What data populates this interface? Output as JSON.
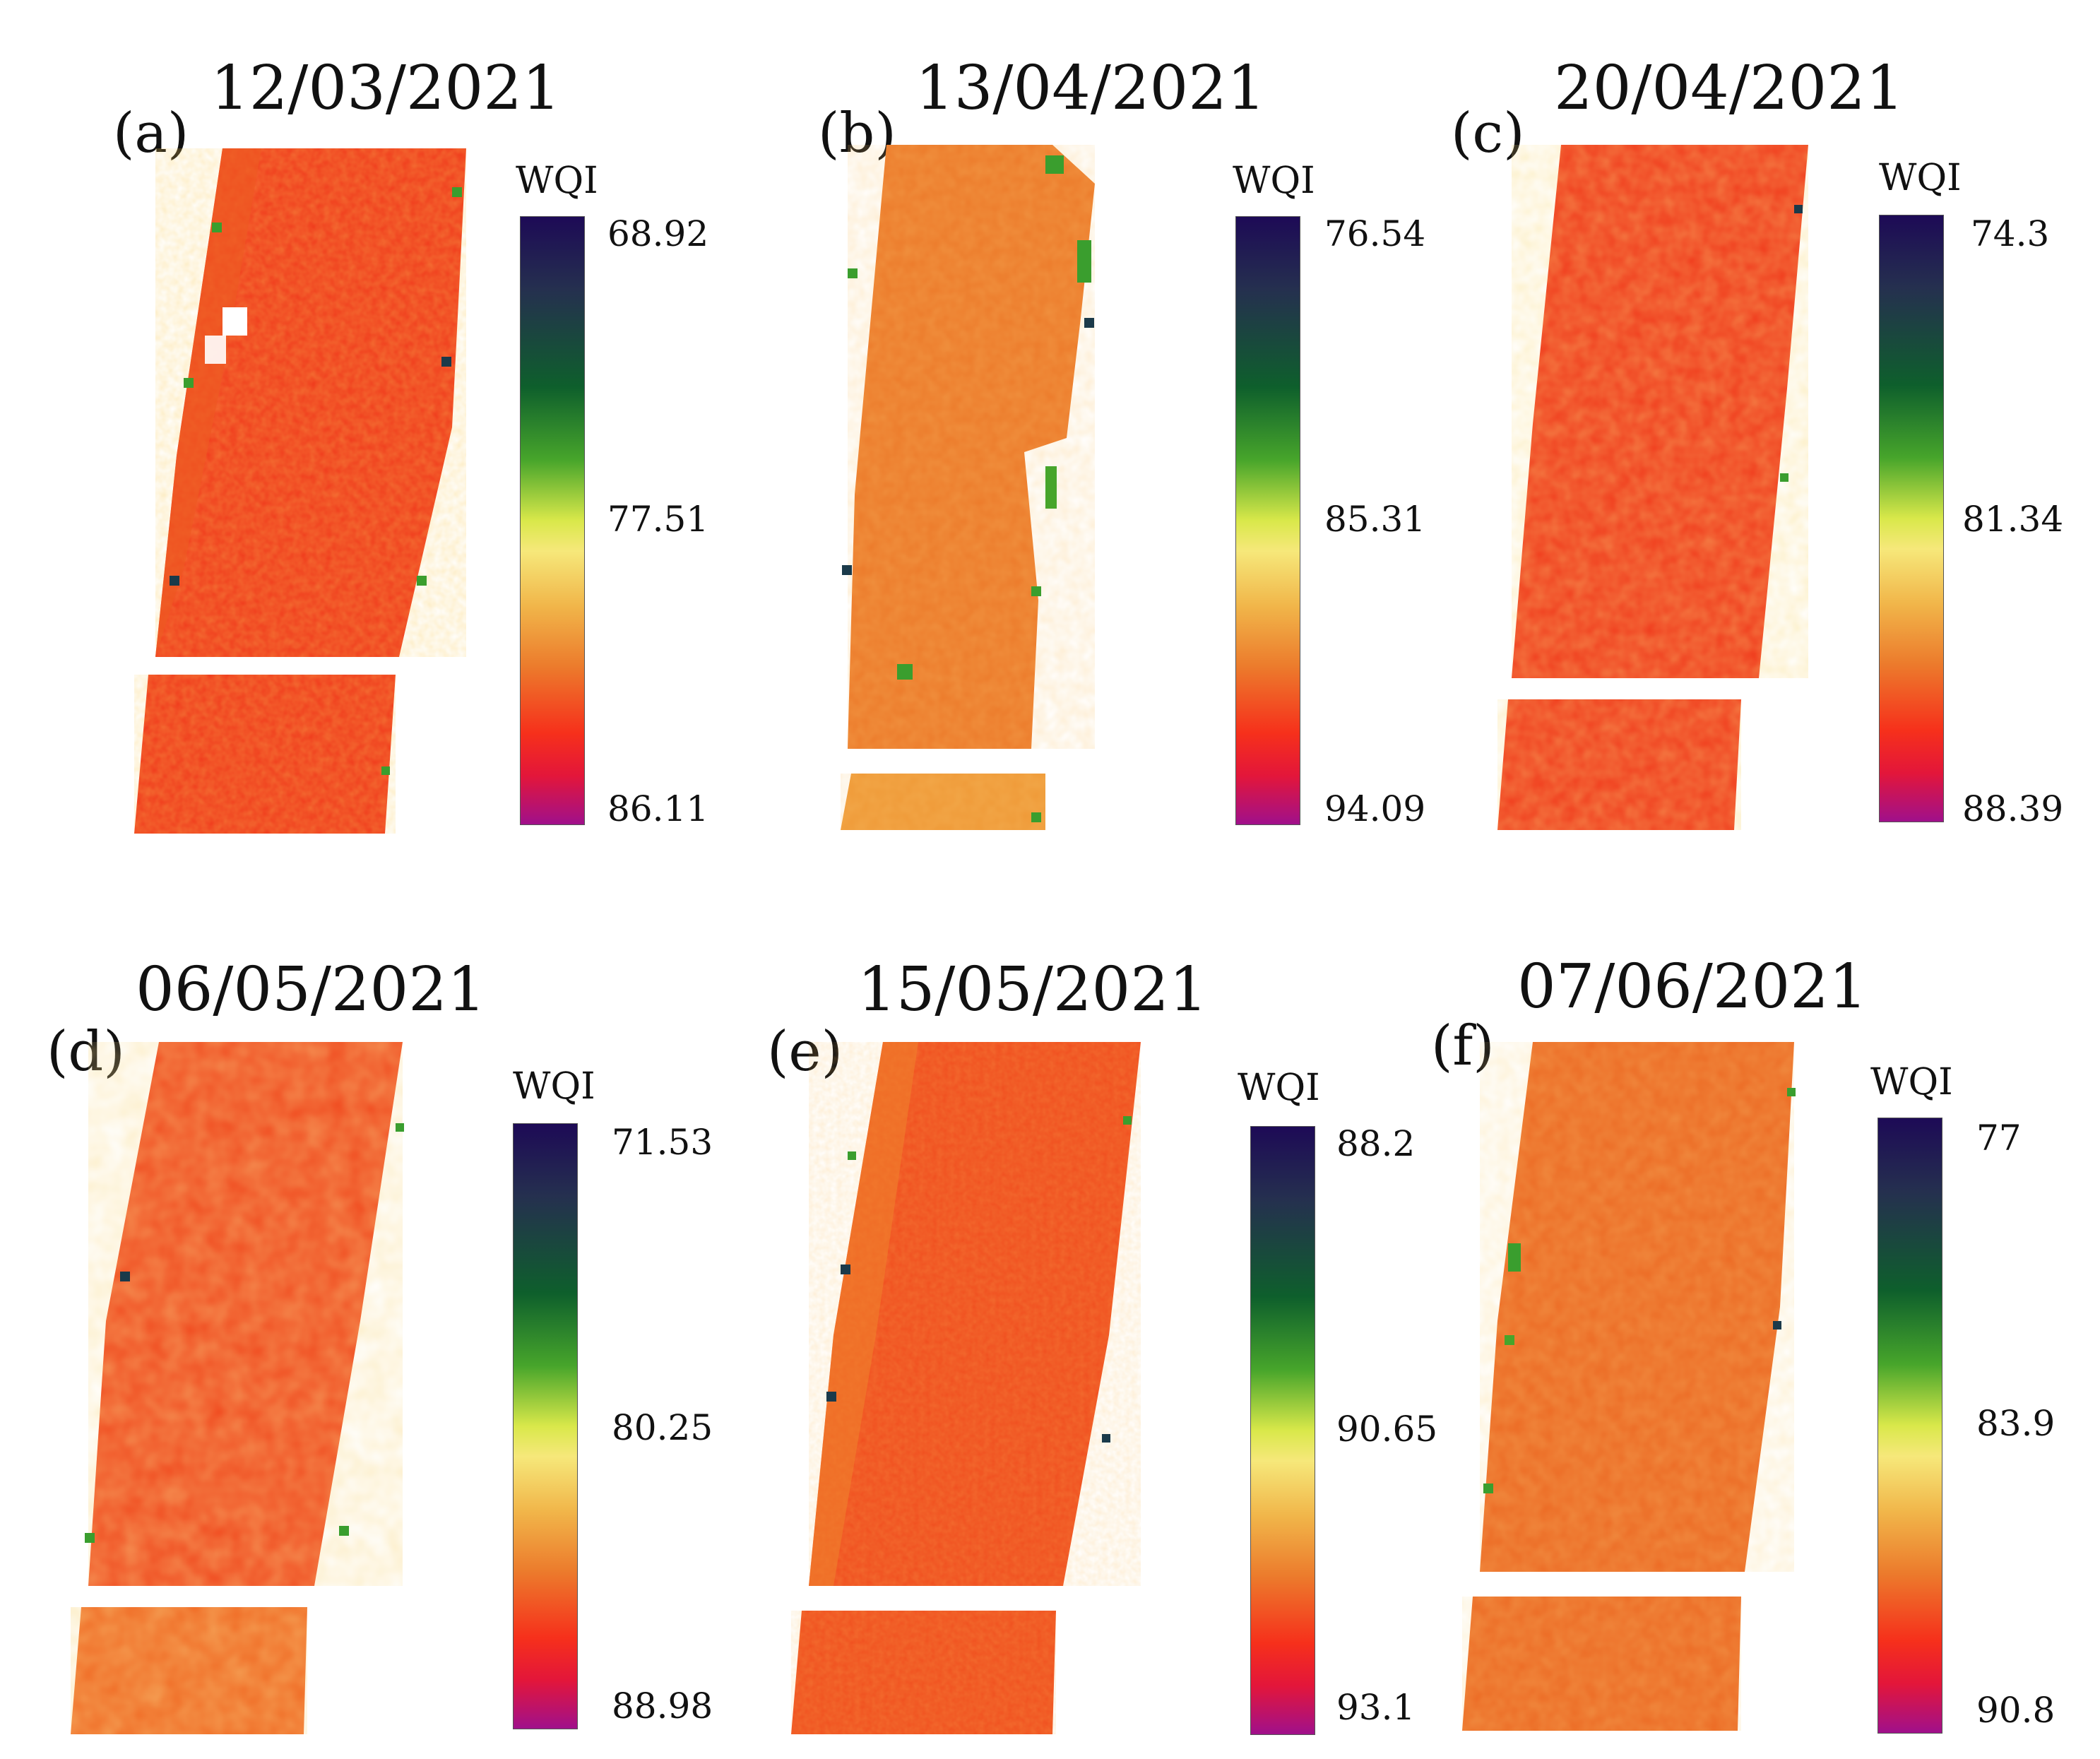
{
  "figure": {
    "legend_title": "WQI",
    "colors": {
      "base_orange": "#ec6a24",
      "base_red": "#f03a1c",
      "light_orange": "#f0902f",
      "yellow_patch": "#f2c44a",
      "edge_green": "#3a9e2e",
      "edge_dark": "#1b3a4a"
    },
    "panels": [
      {
        "letter": "(a)",
        "date": "12/03/2021",
        "legend_max": "68.92",
        "legend_mid": "77.51",
        "legend_min": "86.11"
      },
      {
        "letter": "(b)",
        "date": "13/04/2021",
        "legend_max": "76.54",
        "legend_mid": "85.31",
        "legend_min": "94.09"
      },
      {
        "letter": "(c)",
        "date": "20/04/2021",
        "legend_max": "74.3",
        "legend_mid": "81.34",
        "legend_min": "88.39"
      },
      {
        "letter": "(d)",
        "date": "06/05/2021",
        "legend_max": "71.53",
        "legend_mid": "80.25",
        "legend_min": "88.98"
      },
      {
        "letter": "(e)",
        "date": "15/05/2021",
        "legend_max": "88.2",
        "legend_mid": "90.65",
        "legend_min": "93.1"
      },
      {
        "letter": "(f)",
        "date": "07/06/2021",
        "legend_max": "77",
        "legend_mid": "83.9",
        "legend_min": "90.8"
      }
    ]
  }
}
